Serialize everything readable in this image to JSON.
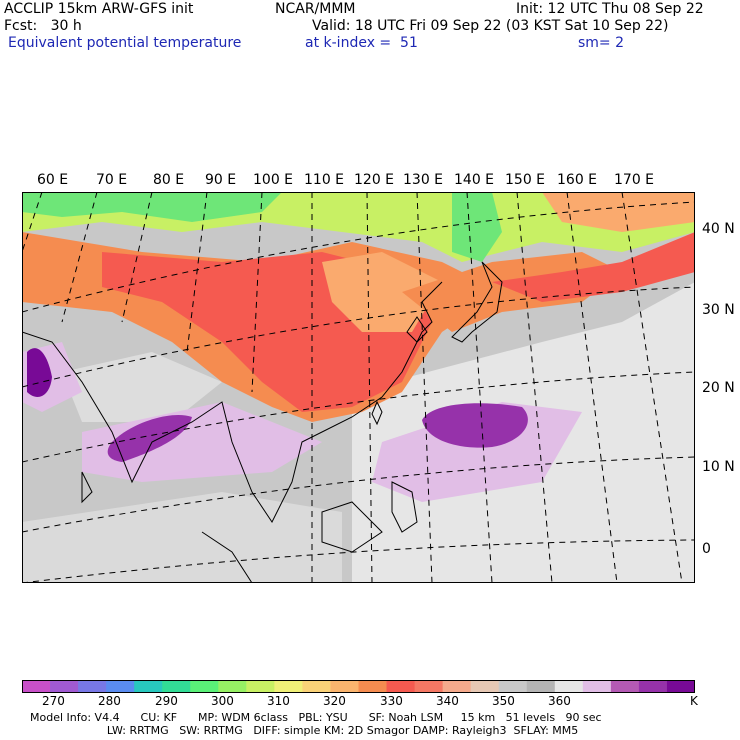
{
  "header": {
    "line1_left": "ACCLIP 15km ARW-GFS init",
    "line1_mid": "NCAR/MMM",
    "line1_right": "Init: 12 UTC Thu 08 Sep 22",
    "line2_left": "Fcst:   30 h",
    "line2_right": "Valid: 18 UTC Fri 09 Sep 22 (03 KST Sat 10 Sep 22)",
    "line3_left": "Equivalent potential temperature",
    "line3_mid": "at k-index =  51",
    "line3_right": "sm= 2"
  },
  "map": {
    "lon_labels": [
      "60 E",
      "70 E",
      "80 E",
      "90 E",
      "100 E",
      "110 E",
      "120 E",
      "130 E",
      "140 E",
      "150 E",
      "160 E",
      "170 E"
    ],
    "lat_labels": [
      "40 N",
      "30 N",
      "20 N",
      "10 N",
      "0"
    ],
    "colors": {
      "grey": "#c8c8c8",
      "light_grey": "#e6e6e6",
      "red": "#f55a50",
      "orange": "#f58c50",
      "light_orange": "#faaa6e",
      "yellow_green": "#c8f064",
      "green": "#6ee678",
      "lilac": "#e1bee6",
      "purple": "#9632aa",
      "dark_purple": "#780a96"
    }
  },
  "colorbar": {
    "colors": [
      "#c850c8",
      "#a05ad2",
      "#7878e6",
      "#5a8cf0",
      "#28c8be",
      "#32dc96",
      "#5af078",
      "#96f064",
      "#c8f064",
      "#f0f078",
      "#fad278",
      "#fab46e",
      "#f58c50",
      "#f55a50",
      "#f57864",
      "#f5aa8c",
      "#e6c8b4",
      "#c8c8c8",
      "#b4b4b4",
      "#e6e6e6",
      "#e1bee6",
      "#b45ab4",
      "#9632aa",
      "#780a96"
    ],
    "labels": [
      "270",
      "280",
      "290",
      "300",
      "310",
      "320",
      "330",
      "340",
      "350",
      "360",
      "K"
    ],
    "unit": "K"
  },
  "model_info": {
    "line1": "Model Info: V4.4      CU: KF      MP: WDM 6class   PBL: YSU      SF: Noah LSM     15 km   51 levels   90 sec",
    "line2": "                      LW: RRTMG   SW: RRTMG   DIFF: simple KM: 2D Smagor DAMP: Rayleigh3  SFLAY: MM5"
  }
}
